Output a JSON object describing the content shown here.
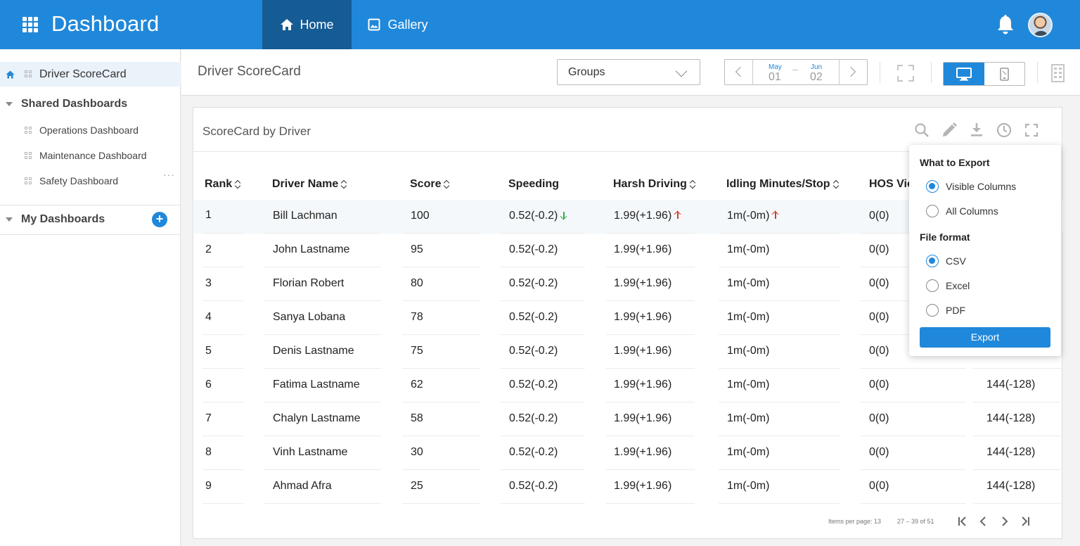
{
  "app": {
    "title": "Dashboard",
    "nav": [
      {
        "label": "Home"
      },
      {
        "label": "Gallery"
      }
    ]
  },
  "sidebar": {
    "active_item": "Driver ScoreCard",
    "shared_group": "Shared Dashboards",
    "shared_items": [
      "Operations Dashboard",
      "Maintenance Dashboard",
      "Safety Dashboard"
    ],
    "more": "···",
    "my_group": "My Dashboards",
    "add": "+"
  },
  "header": {
    "page_title": "Driver ScoreCard",
    "groups_select": "Groups",
    "date_range": {
      "from_month": "May",
      "from_day": "01",
      "to_month": "Jun",
      "to_day": "02"
    }
  },
  "card": {
    "title": "ScoreCard by Driver",
    "columns": [
      "Rank",
      "Driver Name",
      "Score",
      "Speeding",
      "Harsh Driving",
      "Idling Minutes/Stop",
      "HOS Vio"
    ],
    "rows": [
      {
        "rank": "1",
        "name": "Bill Lachman",
        "score": "100",
        "speeding": "0.52(-0.2)",
        "harsh": "1.99(+1.96)",
        "idling": "1m(-0m)",
        "hos": "0(0)",
        "last": ""
      },
      {
        "rank": "2",
        "name": "John Lastname",
        "score": "95",
        "speeding": "0.52(-0.2)",
        "harsh": "1.99(+1.96)",
        "idling": "1m(-0m)",
        "hos": "0(0)",
        "last": ""
      },
      {
        "rank": "3",
        "name": "Florian Robert",
        "score": "80",
        "speeding": "0.52(-0.2)",
        "harsh": "1.99(+1.96)",
        "idling": "1m(-0m)",
        "hos": "0(0)",
        "last": ""
      },
      {
        "rank": "4",
        "name": "Sanya Lobana",
        "score": "78",
        "speeding": "0.52(-0.2)",
        "harsh": "1.99(+1.96)",
        "idling": "1m(-0m)",
        "hos": "0(0)",
        "last": ""
      },
      {
        "rank": "5",
        "name": "Denis Lastname",
        "score": "75",
        "speeding": "0.52(-0.2)",
        "harsh": "1.99(+1.96)",
        "idling": "1m(-0m)",
        "hos": "0(0)",
        "last": ""
      },
      {
        "rank": "6",
        "name": "Fatima Lastname",
        "score": "62",
        "speeding": "0.52(-0.2)",
        "harsh": "1.99(+1.96)",
        "idling": "1m(-0m)",
        "hos": "0(0)",
        "last": "144(-128)"
      },
      {
        "rank": "7",
        "name": "Chalyn Lastname",
        "score": "58",
        "speeding": "0.52(-0.2)",
        "harsh": "1.99(+1.96)",
        "idling": "1m(-0m)",
        "hos": "0(0)",
        "last": "144(-128)"
      },
      {
        "rank": "8",
        "name": "Vinh Lastname",
        "score": "30",
        "speeding": "0.52(-0.2)",
        "harsh": "1.99(+1.96)",
        "idling": "1m(-0m)",
        "hos": "0(0)",
        "last": "144(-128)"
      },
      {
        "rank": "9",
        "name": "Ahmad Afra",
        "score": "25",
        "speeding": "0.52(-0.2)",
        "harsh": "1.99(+1.96)",
        "idling": "1m(-0m)",
        "hos": "0(0)",
        "last": "144(-128)"
      }
    ],
    "pager": {
      "items_per_page": "Items per page: 13",
      "range": "27 – 39 of 51"
    }
  },
  "export": {
    "what_title": "What to Export",
    "what_options": [
      "Visible Columns",
      "All Columns"
    ],
    "format_title": "File format",
    "format_options": [
      "CSV",
      "Excel",
      "PDF"
    ],
    "button": "Export"
  },
  "colors": {
    "primary": "#2088da",
    "primary_dark": "#155b94",
    "trend_up": "#d43a2f",
    "trend_down": "#3aa84a"
  },
  "icons": [
    "apps-icon",
    "home-icon",
    "gallery-icon",
    "bell-icon",
    "search-icon",
    "edit-icon",
    "download-icon",
    "history-icon",
    "fullscreen-icon",
    "desktop-icon",
    "tablet-icon",
    "building-icon"
  ]
}
